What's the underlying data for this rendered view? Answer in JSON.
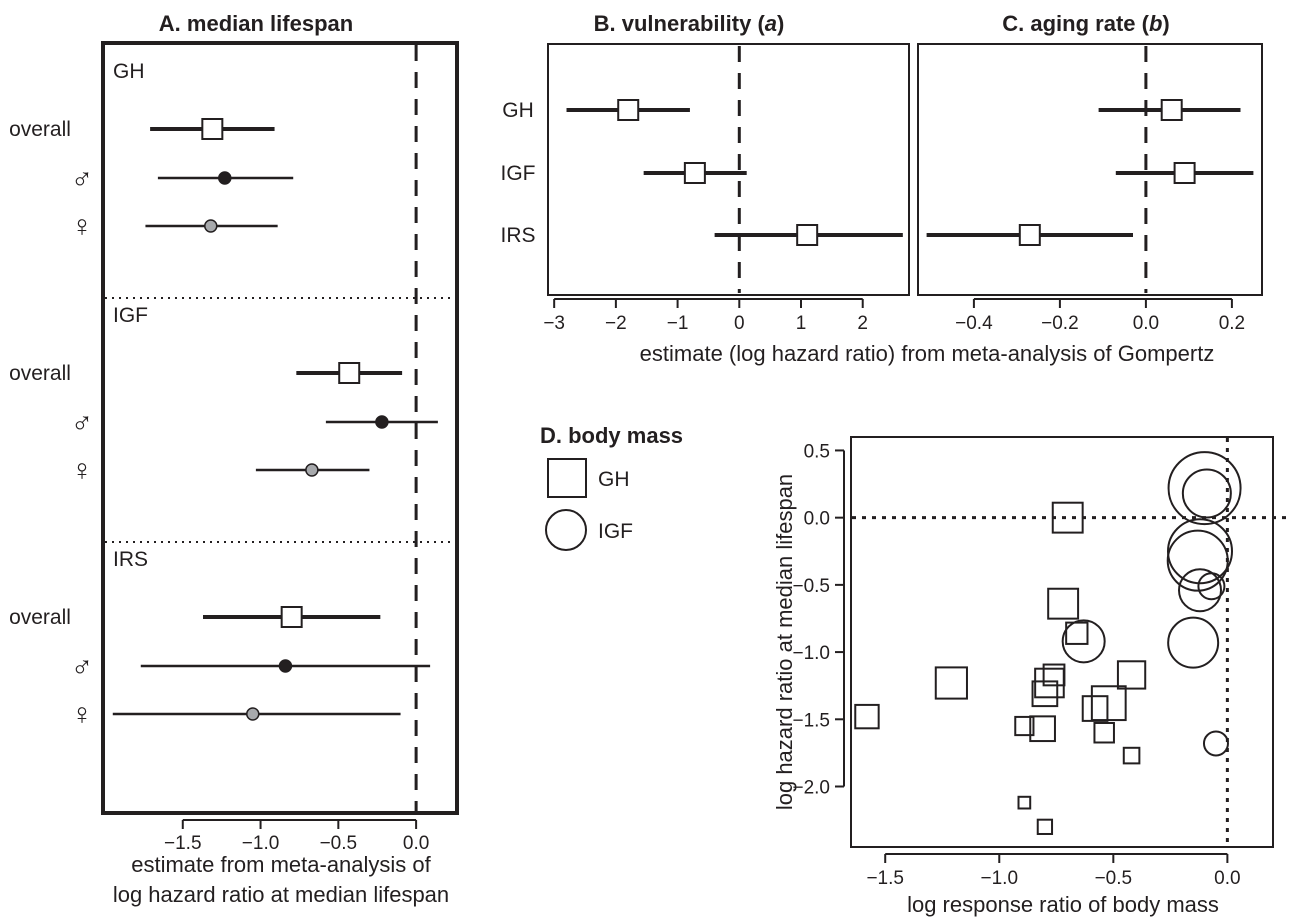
{
  "chart_data": [
    {
      "type": "forest",
      "panel": "A",
      "title_prefix": "A. ",
      "title_main": "median lifespan",
      "xlabel_line1": "estimate from meta-analysis of",
      "xlabel_line2": "log hazard ratio at median lifespan",
      "xlim": [
        -2.0,
        0.25
      ],
      "xticks": [
        -1.5,
        -1.0,
        -0.5,
        0.0
      ],
      "xtick_labels": [
        "−1.5",
        "−1.0",
        "−0.5",
        "0.0"
      ],
      "reference_line": 0.0,
      "row_labels": {
        "overall": "overall",
        "male": "♂",
        "female": "♀"
      },
      "groups": [
        {
          "name": "GH",
          "rows": [
            {
              "row": "overall",
              "est": -1.31,
              "lo": -1.71,
              "hi": -0.91
            },
            {
              "row": "male",
              "est": -1.23,
              "lo": -1.66,
              "hi": -0.79
            },
            {
              "row": "female",
              "est": -1.32,
              "lo": -1.74,
              "hi": -0.89
            }
          ]
        },
        {
          "name": "IGF",
          "rows": [
            {
              "row": "overall",
              "est": -0.43,
              "lo": -0.77,
              "hi": -0.09
            },
            {
              "row": "male",
              "est": -0.22,
              "lo": -0.58,
              "hi": 0.14
            },
            {
              "row": "female",
              "est": -0.67,
              "lo": -1.03,
              "hi": -0.3
            }
          ]
        },
        {
          "name": "IRS",
          "rows": [
            {
              "row": "overall",
              "est": -0.8,
              "lo": -1.37,
              "hi": -0.23
            },
            {
              "row": "male",
              "est": -0.84,
              "lo": -1.77,
              "hi": 0.09
            },
            {
              "row": "female",
              "est": -1.05,
              "lo": -1.95,
              "hi": -0.1
            }
          ]
        }
      ]
    },
    {
      "type": "forest",
      "panel": "B",
      "title_prefix": "B",
      "title_mid": ". vulnerability (",
      "title_italic": "a",
      "title_suffix": ")",
      "xlim": [
        -3.1,
        2.75
      ],
      "xticks": [
        -3,
        -2,
        -1,
        0,
        1,
        2
      ],
      "xtick_labels": [
        "−3",
        "−2",
        "−1",
        "0",
        "1",
        "2"
      ],
      "reference_line": 0,
      "rows": [
        {
          "name": "GH",
          "est": -1.8,
          "lo": -2.8,
          "hi": -0.8
        },
        {
          "name": "IGF",
          "est": -0.72,
          "lo": -1.55,
          "hi": 0.12
        },
        {
          "name": "IRS",
          "est": 1.1,
          "lo": -0.4,
          "hi": 2.65
        }
      ]
    },
    {
      "type": "forest",
      "panel": "C",
      "title_prefix": "C",
      "title_mid": ". aging rate (",
      "title_italic": "b",
      "title_suffix": ")",
      "xlim": [
        -0.53,
        0.27
      ],
      "xticks": [
        -0.4,
        -0.2,
        0.0,
        0.2
      ],
      "xtick_labels": [
        "−0.4",
        "−0.2",
        "0.0",
        "0.2"
      ],
      "reference_line": 0.0,
      "rows": [
        {
          "name": "GH",
          "est": 0.06,
          "lo": -0.11,
          "hi": 0.22
        },
        {
          "name": "IGF",
          "est": 0.09,
          "lo": -0.07,
          "hi": 0.25
        },
        {
          "name": "IRS",
          "est": -0.27,
          "lo": -0.51,
          "hi": -0.03
        }
      ]
    },
    {
      "shared_xlabel_BC": "estimate (log hazard ratio) from meta-analysis of Gompertz"
    },
    {
      "type": "scatter",
      "panel": "D",
      "title_prefix": "D",
      "title_main": ". body mass",
      "xlabel": "log response ratio of body mass",
      "ylabel": "log hazard ratio at median lifespan",
      "xlim": [
        -1.65,
        0.2
      ],
      "ylim": [
        -2.45,
        0.6
      ],
      "xticks": [
        -1.5,
        -1.0,
        -0.5,
        0.0
      ],
      "xtick_labels": [
        "−1.5",
        "−1.0",
        "−0.5",
        "0.0"
      ],
      "yticks": [
        0.5,
        0.0,
        -0.5,
        -1.0,
        -1.5,
        -2.0
      ],
      "ytick_labels": [
        "0.5",
        "0.0",
        "−0.5",
        "−1.0",
        "−1.5",
        "−2.0"
      ],
      "reference_lines": {
        "x": 0.0,
        "y": 0.0
      },
      "legend": [
        {
          "name": "GH",
          "shape": "square"
        },
        {
          "name": "IGF",
          "shape": "circle"
        }
      ],
      "points": [
        {
          "group": "GH",
          "x": -0.7,
          "y": 0.0,
          "size": 1.15
        },
        {
          "group": "GH",
          "x": -0.72,
          "y": -0.64,
          "size": 1.15
        },
        {
          "group": "GH",
          "x": -0.66,
          "y": -0.86,
          "size": 0.82
        },
        {
          "group": "GH",
          "x": -1.21,
          "y": -1.23,
          "size": 1.2
        },
        {
          "group": "GH",
          "x": -0.78,
          "y": -1.23,
          "size": 1.1
        },
        {
          "group": "GH",
          "x": -0.76,
          "y": -1.17,
          "size": 0.8
        },
        {
          "group": "GH",
          "x": -0.8,
          "y": -1.31,
          "size": 0.95
        },
        {
          "group": "GH",
          "x": -0.52,
          "y": -1.38,
          "size": 1.3
        },
        {
          "group": "GH",
          "x": -0.58,
          "y": -1.42,
          "size": 0.95
        },
        {
          "group": "GH",
          "x": -0.42,
          "y": -1.17,
          "size": 1.05
        },
        {
          "group": "GH",
          "x": -1.58,
          "y": -1.48,
          "size": 0.9
        },
        {
          "group": "GH",
          "x": -0.89,
          "y": -1.55,
          "size": 0.7
        },
        {
          "group": "GH",
          "x": -0.81,
          "y": -1.57,
          "size": 0.95
        },
        {
          "group": "GH",
          "x": -0.54,
          "y": -1.6,
          "size": 0.75
        },
        {
          "group": "GH",
          "x": -0.42,
          "y": -1.77,
          "size": 0.6
        },
        {
          "group": "GH",
          "x": -0.89,
          "y": -2.12,
          "size": 0.45
        },
        {
          "group": "GH",
          "x": -0.8,
          "y": -2.3,
          "size": 0.55
        },
        {
          "group": "IGF",
          "x": -0.1,
          "y": 0.22,
          "size": 1.8
        },
        {
          "group": "IGF",
          "x": -0.09,
          "y": 0.18,
          "size": 1.2
        },
        {
          "group": "IGF",
          "x": -0.12,
          "y": -0.25,
          "size": 1.6
        },
        {
          "group": "IGF",
          "x": -0.13,
          "y": -0.32,
          "size": 1.5
        },
        {
          "group": "IGF",
          "x": -0.12,
          "y": -0.54,
          "size": 1.05
        },
        {
          "group": "IGF",
          "x": -0.07,
          "y": -0.51,
          "size": 0.65
        },
        {
          "group": "IGF",
          "x": -0.63,
          "y": -0.92,
          "size": 1.05
        },
        {
          "group": "IGF",
          "x": -0.15,
          "y": -0.93,
          "size": 1.25
        },
        {
          "group": "IGF",
          "x": -0.05,
          "y": -1.68,
          "size": 0.6
        }
      ]
    }
  ]
}
